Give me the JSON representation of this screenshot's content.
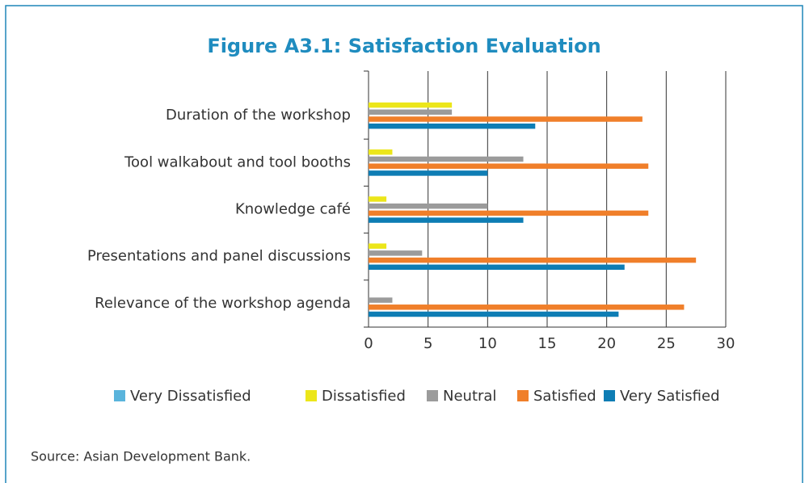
{
  "chart_data": {
    "type": "hbar",
    "title": "Figure A3.1: Satisfaction Evaluation",
    "source": "Source: Asian Development Bank.",
    "categories": [
      "Duration of the workshop",
      "Tool walkabout and tool booths",
      "Knowledge café",
      "Presentations and panel discussions",
      "Relevance of the workshop agenda"
    ],
    "series": [
      {
        "name": "Very Dissatisfied",
        "color": "#5ab4dc",
        "values": [
          0,
          0,
          0,
          0,
          0
        ]
      },
      {
        "name": "Dissatisfied",
        "color": "#ece61a",
        "values": [
          7,
          2,
          1.5,
          1.5,
          0
        ]
      },
      {
        "name": "Neutral",
        "color": "#9b9b9b",
        "values": [
          7,
          13,
          10,
          4.5,
          2
        ]
      },
      {
        "name": "Satisfied",
        "color": "#f07f2a",
        "values": [
          23,
          23.5,
          23.5,
          27.5,
          26.5
        ]
      },
      {
        "name": "Very Satisfied",
        "color": "#0e7db4",
        "values": [
          14,
          10,
          13,
          21.5,
          21
        ]
      }
    ],
    "xlim": [
      0,
      30
    ],
    "xticks": [
      0,
      5,
      10,
      15,
      20,
      25,
      30
    ],
    "grid": true,
    "legend": "bottom"
  }
}
